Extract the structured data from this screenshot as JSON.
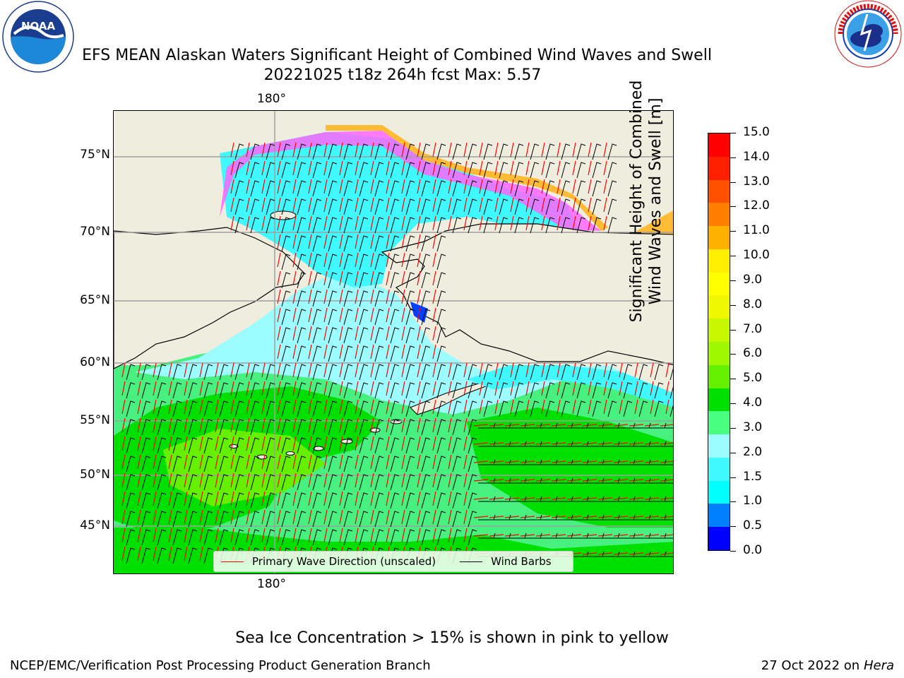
{
  "header": {
    "title_line1": "EFS MEAN Alaskan Waters Significant Height of Combined Wind Waves and Swell",
    "title_line2": "20221025 t18z 264h fcst   Max: 5.57"
  },
  "logos": {
    "left": {
      "name": "noaa-logo",
      "text": "NOAA",
      "ring_text": "NATIONAL OCEANIC AND ATMOSPHERIC ADMINISTRATION · U.S. DEPARTMENT OF COMMERCE"
    },
    "right": {
      "name": "nws-logo",
      "ring_text": "NATIONAL WEATHER SERVICE"
    }
  },
  "map": {
    "lat_labels": [
      "75°N",
      "70°N",
      "65°N",
      "60°N",
      "55°N",
      "50°N",
      "45°N"
    ],
    "lon_label_top": "180°",
    "lon_label_bottom": "180°",
    "land_color": "#efedde",
    "legend": {
      "wave_dir": {
        "label": "Primary Wave Direction (unscaled)",
        "color": "#ff0000"
      },
      "wind_barbs": {
        "label": "Wind Barbs",
        "color": "#000000"
      }
    }
  },
  "colorbar": {
    "title_line1": "Significant Height of Combined",
    "title_line2": "Wind Waves and Swell [m]",
    "ticks": [
      "15.0",
      "14.0",
      "13.0",
      "12.0",
      "11.0",
      "10.0",
      "9.0",
      "8.0",
      "7.0",
      "6.0",
      "5.0",
      "4.0",
      "3.0",
      "2.0",
      "1.5",
      "1.0",
      "0.5",
      "0.0"
    ],
    "colors_bottom_to_top": [
      "#0000ff",
      "#0080ff",
      "#00ffff",
      "#3ff9ff",
      "#9cfcff",
      "#48ff80",
      "#00e000",
      "#64f000",
      "#a0f800",
      "#c8f800",
      "#f0f800",
      "#ffff00",
      "#ffee00",
      "#ffb000",
      "#ff8000",
      "#ff5000",
      "#ff2000",
      "#ff0000"
    ]
  },
  "caption": "Sea Ice Concentration > 15% is shown in pink to yellow",
  "footer": {
    "left": "NCEP/EMC/Verification Post Processing Product Generation Branch",
    "right_prefix": "27 Oct 2022 on ",
    "right_host": "Hera"
  }
}
